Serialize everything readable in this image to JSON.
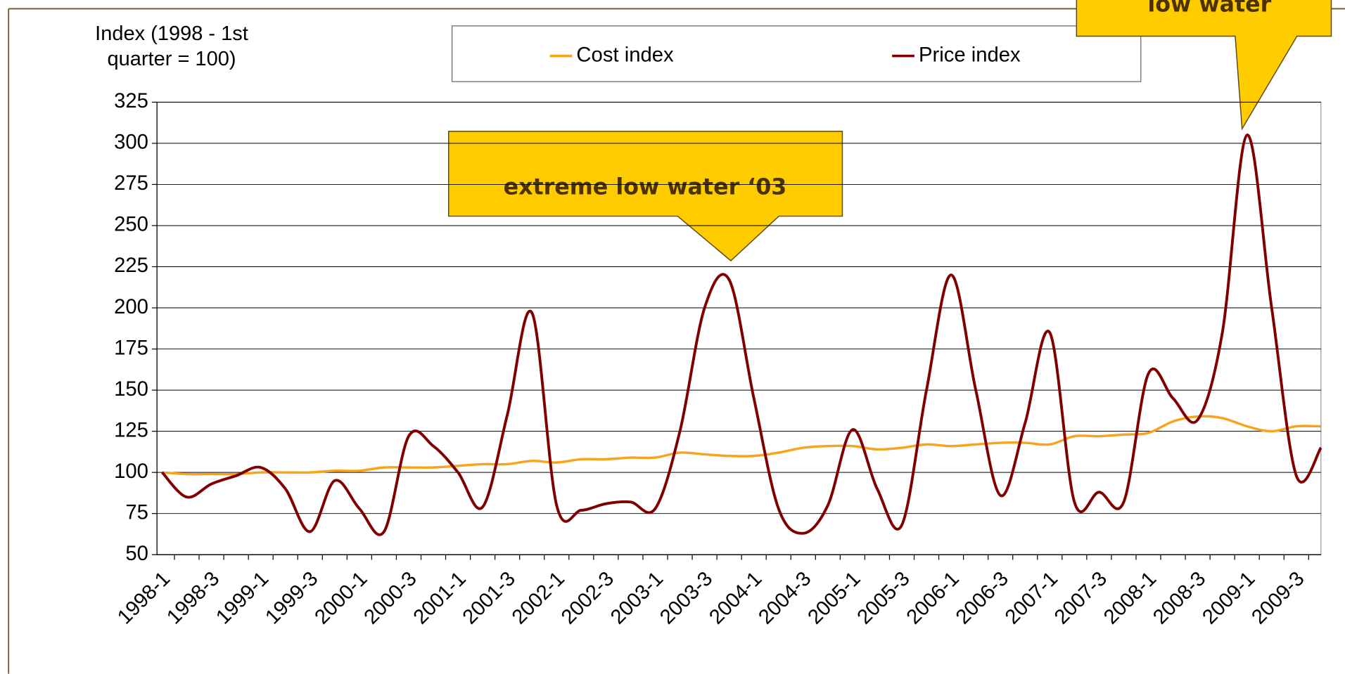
{
  "chart_data": {
    "type": "line",
    "y_label": "Index (1998 - 1st quarter = 100)",
    "categories": [
      "1998-1",
      null,
      "1998-3",
      null,
      "1999-1",
      null,
      "1999-3",
      null,
      "2000-1",
      null,
      "2000-3",
      null,
      "2001-1",
      null,
      "2001-3",
      null,
      "2002-1",
      null,
      "2002-3",
      null,
      "2003-1",
      null,
      "2003-3",
      null,
      "2004-1",
      null,
      "2004-3",
      null,
      "2005-1",
      null,
      "2005-3",
      null,
      "2006-1",
      null,
      "2006-3",
      null,
      "2007-1",
      null,
      "2007-3",
      null,
      "2008-1",
      null,
      "2008-3",
      null,
      "2009-1",
      null,
      "2009-3",
      null
    ],
    "series": [
      {
        "name": "Cost index",
        "color": "#f9a21b",
        "values": [
          100,
          99,
          99,
          99,
          100,
          100,
          100,
          101,
          101,
          103,
          103,
          103,
          104,
          105,
          105,
          107,
          106,
          108,
          108,
          109,
          109,
          112,
          111,
          110,
          110,
          112,
          115,
          116,
          116,
          114,
          115,
          117,
          116,
          117,
          118,
          118,
          117,
          122,
          122,
          123,
          124,
          131,
          134,
          133,
          128,
          125,
          128,
          128
        ]
      },
      {
        "name": "Price index",
        "color": "#800000",
        "values": [
          100,
          85,
          93,
          98,
          103,
          90,
          64,
          95,
          78,
          64,
          122,
          116,
          100,
          79,
          135,
          197,
          80,
          77,
          81,
          82,
          78,
          125,
          200,
          217,
          145,
          78,
          63,
          80,
          126,
          90,
          68,
          150,
          220,
          150,
          86,
          130,
          185,
          82,
          88,
          82,
          160,
          145,
          132,
          185,
          305,
          200,
          98,
          115
        ]
      }
    ],
    "ylim": [
      50,
      325
    ],
    "yticks": [
      50,
      75,
      100,
      125,
      150,
      175,
      200,
      225,
      250,
      275,
      300,
      325
    ],
    "grid": true,
    "annotations": [
      "extreme low water ‘03",
      "low water"
    ]
  }
}
